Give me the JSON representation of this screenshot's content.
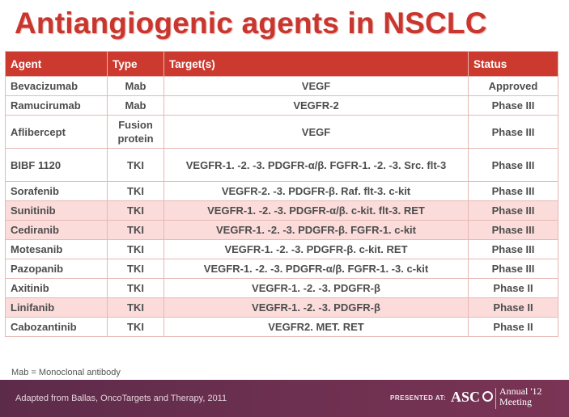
{
  "title": "Antiangiogenic agents in NSCLC",
  "table": {
    "headers": {
      "agent": "Agent",
      "type": "Type",
      "targets": "Target(s)",
      "status": "Status"
    },
    "rows": [
      {
        "agent": "Bevacizumab",
        "type": "Mab",
        "targets": "VEGF",
        "status": "Approved"
      },
      {
        "agent": "Ramucirumab",
        "type": "Mab",
        "targets": "VEGFR-2",
        "status": "Phase III"
      },
      {
        "agent": "Aflibercept",
        "type": "Fusion protein",
        "targets": "VEGF",
        "status": "Phase III"
      },
      {
        "agent": "BIBF 1120",
        "type": "TKI",
        "targets": "VEGFR-1. -2. -3. PDGFR-α/β. FGFR-1. -2. -3. Src. flt-3",
        "status": "Phase III"
      },
      {
        "agent": "Sorafenib",
        "type": "TKI",
        "targets": "VEGFR-2. -3. PDGFR-β. Raf. flt-3. c-kit",
        "status": "Phase III"
      },
      {
        "agent": "Sunitinib",
        "type": "TKI",
        "targets": "VEGFR-1. -2. -3. PDGFR-α/β. c-kit. flt-3. RET",
        "status": "Phase III"
      },
      {
        "agent": "Cediranib",
        "type": "TKI",
        "targets": "VEGFR-1. -2. -3. PDGFR-β. FGFR-1. c-kit",
        "status": "Phase III"
      },
      {
        "agent": "Motesanib",
        "type": "TKI",
        "targets": "VEGFR-1. -2. -3. PDGFR-β. c-kit. RET",
        "status": "Phase III"
      },
      {
        "agent": "Pazopanib",
        "type": "TKI",
        "targets": "VEGFR-1. -2. -3. PDGFR-α/β. FGFR-1. -3. c-kit",
        "status": "Phase III"
      },
      {
        "agent": "Axitinib",
        "type": "TKI",
        "targets": "VEGFR-1. -2. -3. PDGFR-β",
        "status": "Phase II"
      },
      {
        "agent": "Linifanib",
        "type": "TKI",
        "targets": "VEGFR-1. -2. -3. PDGFR-β",
        "status": "Phase II"
      },
      {
        "agent": "Cabozantinib",
        "type": "TKI",
        "targets": "VEGFR2. MET. RET",
        "status": "Phase II"
      }
    ]
  },
  "footnote": "Mab = Monoclonal antibody",
  "footer": {
    "source": "Adapted from Ballas, OncoTargets and Therapy, 2011",
    "presented_at": "PRESENTED AT:",
    "logo_text": "ASC",
    "meeting_line1": "Annual '12",
    "meeting_line2": "Meeting"
  },
  "colors": {
    "title": "#c8362e",
    "header_bg": "#cc3a2f",
    "highlight_row": "#fbdcda",
    "footer_bg": "#6e3050"
  }
}
